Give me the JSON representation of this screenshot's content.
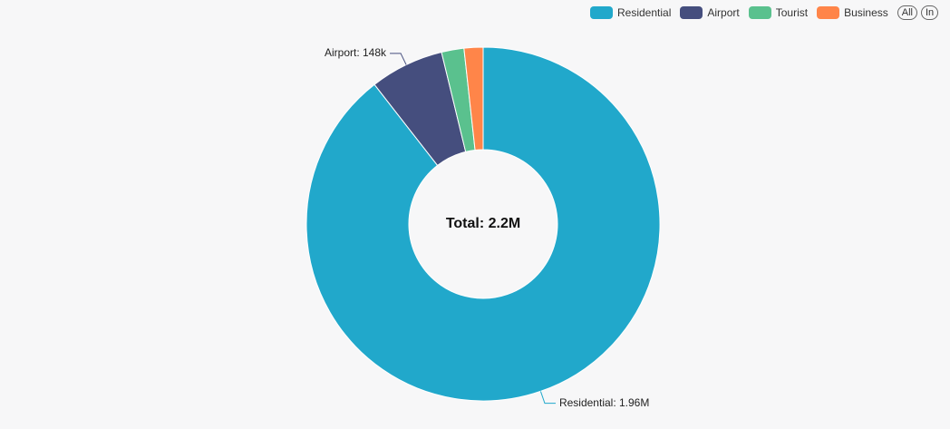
{
  "chart_data": {
    "type": "pie",
    "variant": "donut",
    "center_label": "Total: 2.2M",
    "series": [
      {
        "name": "Residential",
        "value": 1960000,
        "label": "Residential: 1.96M",
        "color": "#21a8cb",
        "show_label": true
      },
      {
        "name": "Airport",
        "value": 148000,
        "label": "Airport: 148k",
        "color": "#454e7e",
        "show_label": true
      },
      {
        "name": "Tourist",
        "value": 45000,
        "label": "",
        "color": "#5ac18e",
        "show_label": false
      },
      {
        "name": "Business",
        "value": 38000,
        "label": "",
        "color": "#ff8549",
        "show_label": false
      }
    ],
    "legend_placement": "top-right",
    "legend_buttons": {
      "all": "All",
      "inverse": "In"
    }
  }
}
